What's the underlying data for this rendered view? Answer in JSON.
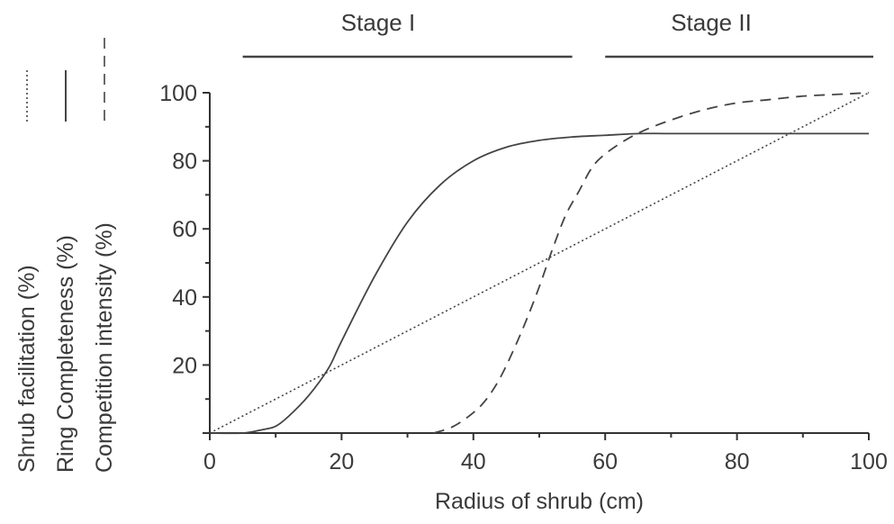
{
  "chart_data": {
    "type": "line",
    "xlabel": "Radius of shrub (cm)",
    "xlim": [
      0,
      100
    ],
    "ylim": [
      0,
      100
    ],
    "x_ticks": [
      0,
      20,
      40,
      60,
      80,
      100
    ],
    "y_ticks": [
      20,
      40,
      60,
      80,
      100
    ],
    "grid": false,
    "stages": [
      {
        "label": "Stage I",
        "x_range": [
          5,
          55
        ]
      },
      {
        "label": "Stage II",
        "x_range": [
          60,
          100
        ]
      }
    ],
    "series": [
      {
        "name": "Shrub facilitation (%)",
        "style": "dotted",
        "color": "#444444",
        "x": [
          0,
          100
        ],
        "y": [
          0,
          100
        ]
      },
      {
        "name": "Ring Completeness (%)",
        "style": "solid",
        "color": "#444444",
        "x": [
          0,
          5,
          8,
          10,
          12,
          15,
          18,
          20,
          25,
          30,
          35,
          40,
          45,
          50,
          55,
          60,
          65,
          70,
          80,
          90,
          100
        ],
        "y": [
          0,
          0,
          1,
          2,
          5,
          11,
          19,
          27,
          46,
          62,
          73,
          80,
          84,
          86,
          87,
          87.5,
          88,
          88,
          88,
          88,
          88
        ]
      },
      {
        "name": "Competition intensity (%)",
        "style": "dashed",
        "color": "#444444",
        "x": [
          34,
          37,
          40,
          42,
          44,
          46,
          48,
          50,
          52,
          54,
          56,
          58,
          60,
          63,
          66,
          70,
          75,
          80,
          85,
          90,
          95,
          100
        ],
        "y": [
          0,
          2,
          6,
          10,
          16,
          24,
          33,
          43,
          54,
          64,
          71,
          78,
          82,
          86,
          89,
          92,
          95,
          97,
          98,
          99,
          99.5,
          100
        ]
      }
    ]
  }
}
